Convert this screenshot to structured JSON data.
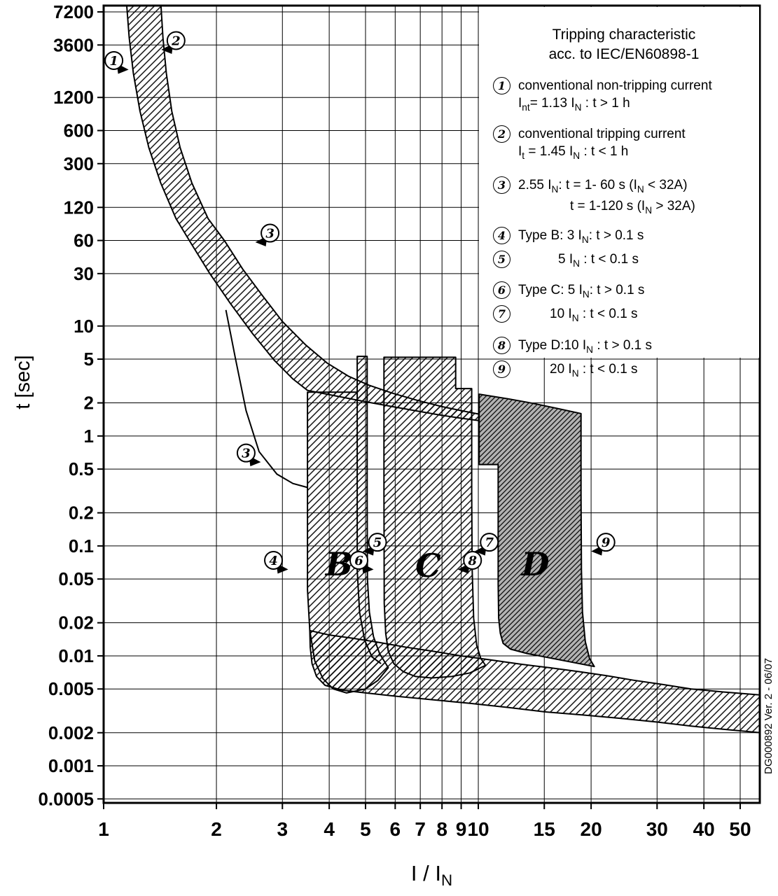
{
  "figure": {
    "y_axis_title": "t [sec]",
    "x_axis_title": "I / I~N~",
    "side_note": "DG000892 Ver. 2 - 06/07"
  },
  "legend": {
    "title_line1": "Tripping characteristic",
    "title_line2": "acc. to IEC/EN60898-1",
    "items": [
      {
        "num": "1",
        "line1": "conventional non-tripping current",
        "line2": "I~nt~= 1.13 I~N~ : t > 1 h"
      },
      {
        "num": "2",
        "line1": "conventional tripping current",
        "line2": "I~t~ = 1.45 I~N~ : t < 1 h"
      },
      {
        "num": "3",
        "line1": "2.55 I~N~: t = 1- 60 s (I~N~ < 32A)",
        "line2": "t = 1-120 s (I~N~ > 32A)"
      },
      {
        "num": "4",
        "line1": "Type B: 3 I~N~: t > 0.1 s"
      },
      {
        "num": "5",
        "line1": "5 I~N~ : t < 0.1 s"
      },
      {
        "num": "6",
        "line1": "Type C: 5 I~N~: t > 0.1 s"
      },
      {
        "num": "7",
        "line1": "10 I~N~ : t < 0.1 s"
      },
      {
        "num": "8",
        "line1": "Type D:10 I~N~ : t > 0.1 s"
      },
      {
        "num": "9",
        "line1": "20 I~N~ : t < 0.1 s"
      }
    ]
  },
  "chart_data": {
    "type": "area",
    "title": "Tripping characteristic acc. to IEC/EN60898-1",
    "xlabel": "I / IN",
    "ylabel": "t [sec]",
    "x_scale": "log",
    "y_scale": "log",
    "grid": true,
    "xlim": [
      1,
      56.4
    ],
    "ylim": [
      0.00046,
      8214
    ],
    "x_ticks": [
      {
        "v": 1,
        "label": "1"
      },
      {
        "v": 2,
        "label": "2"
      },
      {
        "v": 3,
        "label": "3"
      },
      {
        "v": 4,
        "label": "4"
      },
      {
        "v": 5,
        "label": "5"
      },
      {
        "v": 6,
        "label": "6"
      },
      {
        "v": 7,
        "label": "7"
      },
      {
        "v": 8,
        "label": "8"
      },
      {
        "v": 9,
        "label": "9"
      },
      {
        "v": 10,
        "label": "10"
      },
      {
        "v": 15,
        "label": "15"
      },
      {
        "v": 20,
        "label": "20"
      },
      {
        "v": 30,
        "label": "30"
      },
      {
        "v": 40,
        "label": "40"
      },
      {
        "v": 50,
        "label": "50"
      }
    ],
    "y_ticks": [
      {
        "v": 7200,
        "label": "7200"
      },
      {
        "v": 3600,
        "label": "3600"
      },
      {
        "v": 1200,
        "label": "1200"
      },
      {
        "v": 600,
        "label": "600"
      },
      {
        "v": 300,
        "label": "300"
      },
      {
        "v": 120,
        "label": "120"
      },
      {
        "v": 60,
        "label": "60"
      },
      {
        "v": 30,
        "label": "30"
      },
      {
        "v": 10,
        "label": "10"
      },
      {
        "v": 5,
        "label": "5"
      },
      {
        "v": 2,
        "label": "2"
      },
      {
        "v": 1,
        "label": "1"
      },
      {
        "v": 0.5,
        "label": "0.5"
      },
      {
        "v": 0.2,
        "label": "0.2"
      },
      {
        "v": 0.1,
        "label": "0.1"
      },
      {
        "v": 0.05,
        "label": "0.05"
      },
      {
        "v": 0.02,
        "label": "0.02"
      },
      {
        "v": 0.01,
        "label": "0.01"
      },
      {
        "v": 0.005,
        "label": "0.005"
      },
      {
        "v": 0.002,
        "label": "0.002"
      },
      {
        "v": 0.001,
        "label": "0.001"
      },
      {
        "v": 0.0005,
        "label": "0.0005"
      }
    ],
    "bands": [
      {
        "name": "thermal-tolerance-band",
        "style": "hatch",
        "points": [
          [
            1.15,
            9000
          ],
          [
            1.17,
            4200
          ],
          [
            1.2,
            2000
          ],
          [
            1.25,
            900
          ],
          [
            1.32,
            420
          ],
          [
            1.42,
            200
          ],
          [
            1.56,
            95
          ],
          [
            1.72,
            55
          ],
          [
            1.92,
            30
          ],
          [
            2.18,
            16
          ],
          [
            2.5,
            8.5
          ],
          [
            2.85,
            4.9
          ],
          [
            3.2,
            3.3
          ],
          [
            3.5,
            2.6
          ],
          [
            4.2,
            2.3
          ],
          [
            5.0,
            2.05
          ],
          [
            5.9,
            1.85
          ],
          [
            6.9,
            1.68
          ],
          [
            7.9,
            1.55
          ],
          [
            9.0,
            1.45
          ],
          [
            10.05,
            1.38
          ],
          [
            10.05,
            1.58
          ],
          [
            9.0,
            1.7
          ],
          [
            8.0,
            1.85
          ],
          [
            6.9,
            2.1
          ],
          [
            5.9,
            2.45
          ],
          [
            5.1,
            2.9
          ],
          [
            4.5,
            3.5
          ],
          [
            3.95,
            4.6
          ],
          [
            3.45,
            6.8
          ],
          [
            3.0,
            11
          ],
          [
            2.65,
            19
          ],
          [
            2.35,
            33
          ],
          [
            2.1,
            60
          ],
          [
            1.9,
            95
          ],
          [
            1.72,
            200
          ],
          [
            1.6,
            420
          ],
          [
            1.52,
            900
          ],
          [
            1.47,
            2000
          ],
          [
            1.44,
            4200
          ],
          [
            1.42,
            9000
          ]
        ]
      },
      {
        "name": "type-b-band",
        "style": "hatch",
        "points": [
          [
            3.5,
            2.5
          ],
          [
            3.5,
            0.04
          ],
          [
            3.55,
            0.017
          ],
          [
            3.66,
            0.009
          ],
          [
            3.85,
            0.0062
          ],
          [
            4.1,
            0.005
          ],
          [
            4.45,
            0.0046
          ],
          [
            5.0,
            0.005
          ],
          [
            5.4,
            0.006
          ],
          [
            5.75,
            0.0078
          ],
          [
            5.45,
            0.0105
          ],
          [
            5.25,
            0.015
          ],
          [
            5.12,
            0.025
          ],
          [
            5.06,
            0.05
          ],
          [
            5.05,
            0.3
          ],
          [
            5.05,
            5.3
          ],
          [
            4.75,
            5.3
          ],
          [
            4.75,
            2.5
          ]
        ]
      },
      {
        "name": "type-c-band",
        "style": "hatch",
        "points": [
          [
            5.6,
            5.2
          ],
          [
            8.7,
            5.2
          ],
          [
            8.7,
            2.7
          ],
          [
            9.6,
            2.7
          ],
          [
            9.6,
            0.3
          ],
          [
            9.63,
            0.06
          ],
          [
            9.72,
            0.022
          ],
          [
            9.9,
            0.0125
          ],
          [
            10.15,
            0.0095
          ],
          [
            10.45,
            0.0082
          ],
          [
            9.5,
            0.007
          ],
          [
            8.5,
            0.0065
          ],
          [
            7.5,
            0.0063
          ],
          [
            6.8,
            0.0065
          ],
          [
            6.3,
            0.0072
          ],
          [
            5.95,
            0.0085
          ],
          [
            5.75,
            0.011
          ],
          [
            5.66,
            0.016
          ],
          [
            5.61,
            0.03
          ],
          [
            5.6,
            0.3
          ]
        ]
      },
      {
        "name": "type-d-band",
        "style": "dark",
        "points": [
          [
            10.05,
            2.4
          ],
          [
            12.0,
            2.18
          ],
          [
            14.0,
            1.98
          ],
          [
            16.0,
            1.8
          ],
          [
            18.8,
            1.6
          ],
          [
            18.8,
            0.3
          ],
          [
            18.85,
            0.06
          ],
          [
            18.97,
            0.025
          ],
          [
            19.3,
            0.0135
          ],
          [
            19.8,
            0.0095
          ],
          [
            20.4,
            0.008
          ],
          [
            13.5,
            0.0105
          ],
          [
            12.2,
            0.0115
          ],
          [
            11.65,
            0.013
          ],
          [
            11.45,
            0.016
          ],
          [
            11.33,
            0.022
          ],
          [
            11.3,
            0.045
          ],
          [
            11.3,
            0.55
          ],
          [
            10.05,
            0.55
          ]
        ]
      },
      {
        "name": "instantaneous-band",
        "style": "hatch",
        "points": [
          [
            3.55,
            0.017
          ],
          [
            4.0,
            0.0155
          ],
          [
            4.6,
            0.0145
          ],
          [
            5.4,
            0.0133
          ],
          [
            6.4,
            0.012
          ],
          [
            7.6,
            0.011
          ],
          [
            9.0,
            0.01
          ],
          [
            10.8,
            0.0092
          ],
          [
            13.0,
            0.0084
          ],
          [
            15.5,
            0.0078
          ],
          [
            18.5,
            0.0072
          ],
          [
            22,
            0.0066
          ],
          [
            26,
            0.006
          ],
          [
            31,
            0.0055
          ],
          [
            37,
            0.005
          ],
          [
            45,
            0.0047
          ],
          [
            57,
            0.0044
          ],
          [
            57,
            0.002
          ],
          [
            45,
            0.00215
          ],
          [
            37,
            0.0023
          ],
          [
            30,
            0.0025
          ],
          [
            24,
            0.0027
          ],
          [
            19,
            0.0029
          ],
          [
            15,
            0.0031
          ],
          [
            12,
            0.0034
          ],
          [
            9.5,
            0.0037
          ],
          [
            7.5,
            0.004
          ],
          [
            6.0,
            0.0043
          ],
          [
            5.0,
            0.0046
          ],
          [
            4.3,
            0.0049
          ],
          [
            3.9,
            0.0054
          ],
          [
            3.7,
            0.0065
          ],
          [
            3.6,
            0.0085
          ],
          [
            3.56,
            0.012
          ]
        ]
      }
    ],
    "curves": [
      {
        "name": "lower-thermal-limit-curve",
        "points": [
          [
            2.12,
            14
          ],
          [
            2.25,
            5.0
          ],
          [
            2.4,
            1.7
          ],
          [
            2.6,
            0.72
          ],
          [
            2.9,
            0.45
          ],
          [
            3.2,
            0.37
          ],
          [
            3.5,
            0.34
          ]
        ]
      },
      {
        "name": "type-b-inner-boundary",
        "points": [
          [
            4.75,
            2.5
          ],
          [
            4.75,
            0.06
          ],
          [
            4.82,
            0.025
          ],
          [
            4.97,
            0.014
          ],
          [
            5.2,
            0.0098
          ],
          [
            5.5,
            0.0085
          ]
        ]
      }
    ],
    "markers": [
      {
        "n": "1",
        "x": 1.065,
        "y": 2600,
        "dir": "rb"
      },
      {
        "n": "2",
        "x": 1.56,
        "y": 3950,
        "dir": "lb"
      },
      {
        "n": "3",
        "x": 2.78,
        "y": 70,
        "dir": "lb"
      },
      {
        "n": "3",
        "x": 2.4,
        "y": 0.7,
        "dir": "rb"
      },
      {
        "n": "4",
        "x": 2.84,
        "y": 0.074,
        "dir": "rb"
      },
      {
        "n": "5",
        "x": 5.38,
        "y": 0.108,
        "dir": "lb"
      },
      {
        "n": "6",
        "x": 4.8,
        "y": 0.074,
        "dir": "rb"
      },
      {
        "n": "7",
        "x": 10.7,
        "y": 0.108,
        "dir": "lb"
      },
      {
        "n": "8",
        "x": 9.65,
        "y": 0.074,
        "dir": "lb"
      },
      {
        "n": "9",
        "x": 21.9,
        "y": 0.108,
        "dir": "lb"
      }
    ],
    "region_labels": [
      {
        "text": "B",
        "x": 4.25,
        "y": 0.068
      },
      {
        "text": "C",
        "x": 7.35,
        "y": 0.066
      },
      {
        "text": "D",
        "x": 14.2,
        "y": 0.068
      }
    ]
  }
}
